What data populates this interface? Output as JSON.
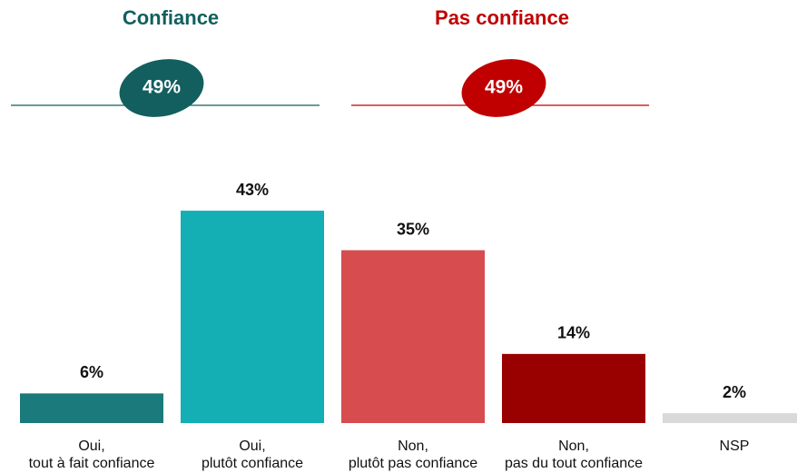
{
  "chart_data": {
    "type": "bar",
    "groups": [
      {
        "name": "Confiance",
        "value": 49,
        "value_label": "49%",
        "color": "#135f5f"
      },
      {
        "name": "Pas confiance",
        "value": 49,
        "value_label": "49%",
        "color": "#c00000"
      }
    ],
    "categories": [
      "Oui,\ntout à fait confiance",
      "Oui,\nplutôt confiance",
      "Non,\nplutôt pas confiance",
      "Non,\npas du tout confiance",
      "NSP"
    ],
    "values": [
      6,
      43,
      35,
      14,
      2
    ],
    "value_labels": [
      "6%",
      "43%",
      "35%",
      "14%",
      "2%"
    ],
    "colors": [
      "#1b7a7b",
      "#14aeb5",
      "#d64c4f",
      "#990000",
      "#d9d9d9"
    ],
    "ylim": [
      0,
      50
    ]
  }
}
